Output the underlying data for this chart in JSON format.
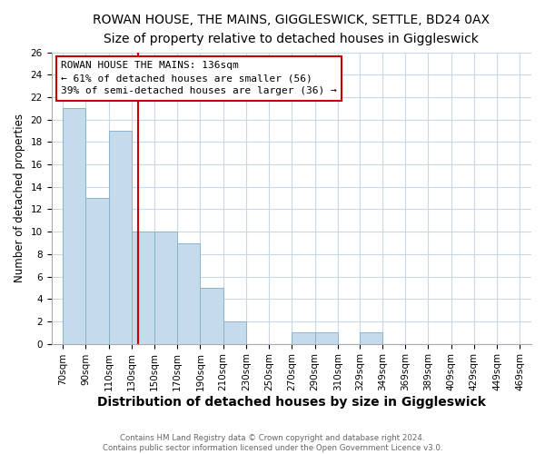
{
  "title": "ROWAN HOUSE, THE MAINS, GIGGLESWICK, SETTLE, BD24 0AX",
  "subtitle": "Size of property relative to detached houses in Giggleswick",
  "xlabel": "Distribution of detached houses by size in Giggleswick",
  "ylabel": "Number of detached properties",
  "footer_line1": "Contains HM Land Registry data © Crown copyright and database right 2024.",
  "footer_line2": "Contains public sector information licensed under the Open Government Licence v3.0.",
  "annotation_line1": "ROWAN HOUSE THE MAINS: 136sqm",
  "annotation_line2": "← 61% of detached houses are smaller (56)",
  "annotation_line3": "39% of semi-detached houses are larger (36) →",
  "bins": [
    70,
    90,
    110,
    130,
    150,
    170,
    190,
    210,
    230,
    250,
    270,
    290,
    310,
    329,
    349,
    369,
    389,
    409,
    429,
    449,
    469
  ],
  "values": [
    21,
    13,
    19,
    10,
    10,
    9,
    5,
    2,
    0,
    0,
    1,
    1,
    0,
    1,
    0,
    0,
    0,
    0,
    0,
    0
  ],
  "bar_color": "#c5daea",
  "bar_edge_color": "#8ab4cc",
  "reference_line_x": 136,
  "ylim": [
    0,
    26
  ],
  "yticks": [
    0,
    2,
    4,
    6,
    8,
    10,
    12,
    14,
    16,
    18,
    20,
    22,
    24,
    26
  ],
  "background_color": "#ffffff",
  "grid_color": "#c8d8e8",
  "annotation_box_color": "#ffffff",
  "annotation_box_edge": "#cc0000",
  "ref_line_color": "#cc0000",
  "title_fontsize": 10,
  "subtitle_fontsize": 9.5,
  "xlabel_fontsize": 10,
  "ylabel_fontsize": 8.5,
  "tick_fontsize": 7.5,
  "annotation_fontsize": 8,
  "tick_labels": [
    "70sqm",
    "90sqm",
    "110sqm",
    "130sqm",
    "150sqm",
    "170sqm",
    "190sqm",
    "210sqm",
    "230sqm",
    "250sqm",
    "270sqm",
    "290sqm",
    "310sqm",
    "329sqm",
    "349sqm",
    "369sqm",
    "389sqm",
    "409sqm",
    "429sqm",
    "449sqm",
    "469sqm"
  ]
}
